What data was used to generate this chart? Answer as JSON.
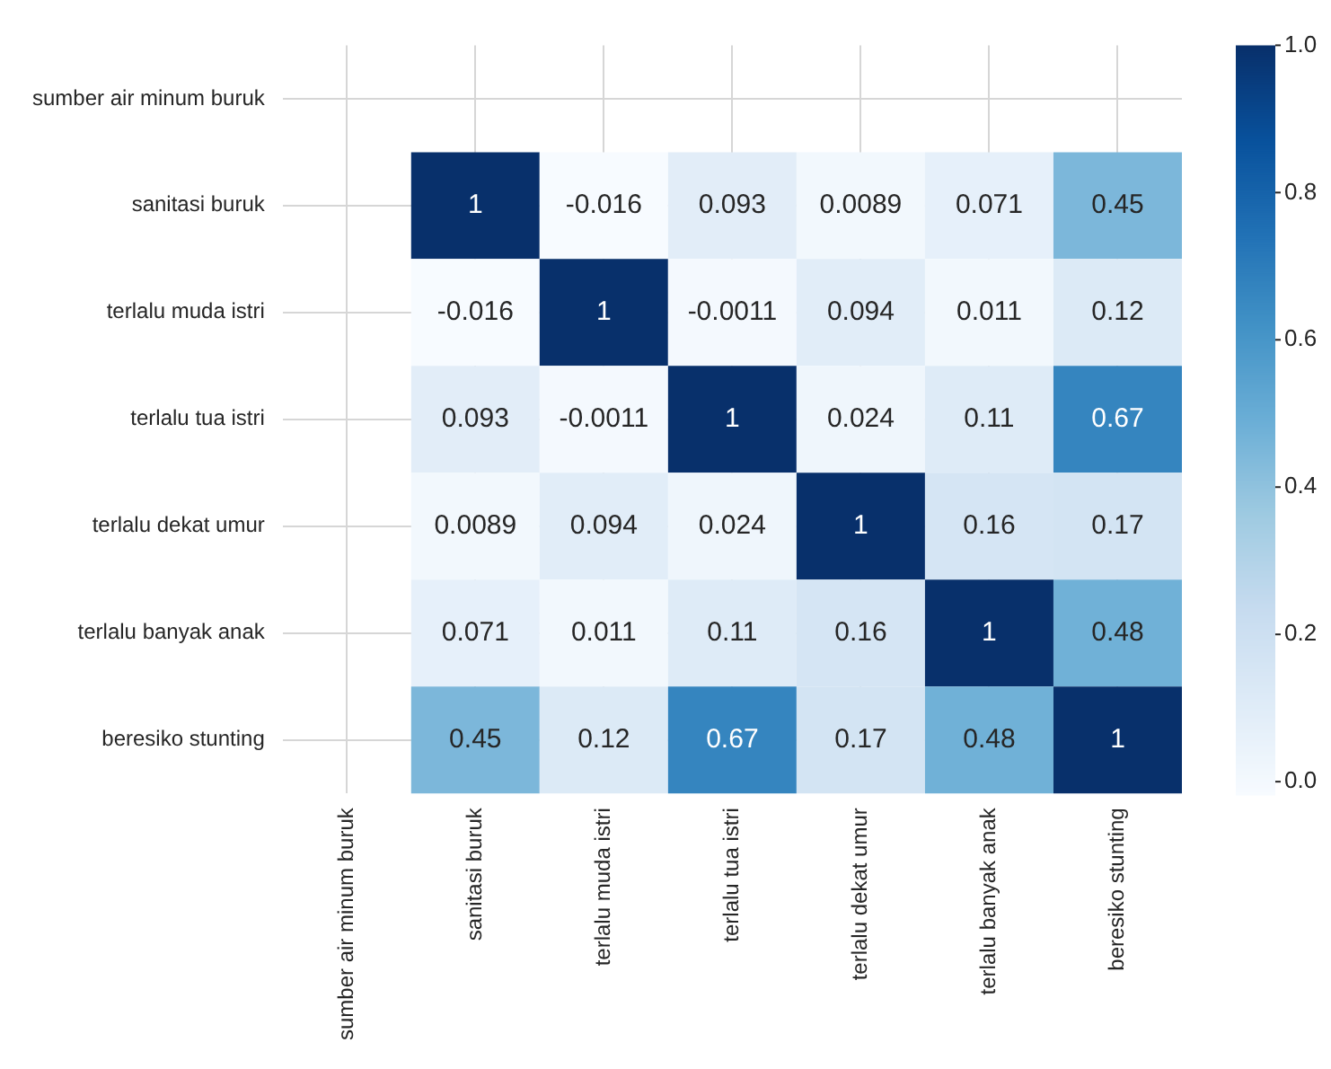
{
  "chart_data": {
    "type": "heatmap",
    "categories": [
      "sumber air minum buruk",
      "sanitasi buruk",
      "terlalu muda istri",
      "terlalu tua istri",
      "terlalu dekat umur",
      "terlalu banyak anak",
      "beresiko stunting"
    ],
    "y_categories": [
      "sumber air minum buruk",
      "sanitasi buruk",
      "terlalu muda istri",
      "terlalu tua istri",
      "terlalu dekat umur",
      "terlalu banyak anak",
      "beresiko stunting"
    ],
    "cells": [
      [
        null,
        null,
        null,
        null,
        null,
        null,
        null
      ],
      [
        null,
        1,
        -0.016,
        0.093,
        0.0089,
        0.071,
        0.45
      ],
      [
        null,
        -0.016,
        1,
        -0.0011,
        0.094,
        0.011,
        0.12
      ],
      [
        null,
        0.093,
        -0.0011,
        1,
        0.024,
        0.11,
        0.67
      ],
      [
        null,
        0.0089,
        0.094,
        0.024,
        1,
        0.16,
        0.17
      ],
      [
        null,
        0.071,
        0.011,
        0.11,
        0.16,
        1,
        0.48
      ],
      [
        null,
        0.45,
        0.12,
        0.67,
        0.17,
        0.48,
        1
      ]
    ],
    "clim": [
      -0.016,
      1
    ],
    "cticks": [
      {
        "value": 0,
        "label": "0.0"
      },
      {
        "value": 0.2,
        "label": "0.2"
      },
      {
        "value": 0.4,
        "label": "0.4"
      },
      {
        "value": 0.6,
        "label": "0.6"
      },
      {
        "value": 0.8,
        "label": "0.8"
      },
      {
        "value": 1,
        "label": "1.0"
      }
    ],
    "grid": true,
    "data_labels": true
  }
}
